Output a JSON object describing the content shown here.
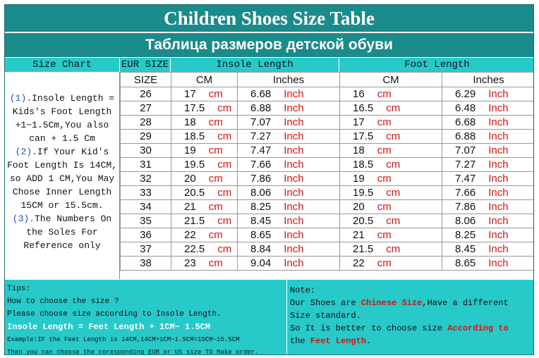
{
  "title": "Children Shoes Size Table",
  "subtitle": "Таблица размеров детской обуви",
  "headers": {
    "size_chart": "Size Chart",
    "eur_size": "EUR SIZE",
    "insole_length": "Insole Length",
    "foot_length": "Foot Length",
    "size": "SIZE",
    "cm": "CM",
    "inches": "Inches"
  },
  "units": {
    "cm": "cm",
    "inch": "Inch"
  },
  "side_note": {
    "p1_num": "(1).",
    "p1_text": "Insole Length = Kids's Foot Length +1~1.5Cm,You also can + 1.5 Cm",
    "p2_num": "(2).",
    "p2_text": "If Your Kid's Foot Length Is 14CM,  so ADD 1 CM,You May Chose Inner Length 15CM or 15.5cm.",
    "p3_num": "(3).",
    "p3_text": "The Numbers On the Soles For Reference only"
  },
  "rows": [
    {
      "size": "26",
      "insole_cm": "17",
      "insole_in": "6.68",
      "foot_cm": "16",
      "foot_in": "6.29"
    },
    {
      "size": "27",
      "insole_cm": "17.5",
      "insole_in": "6.88",
      "foot_cm": "16.5",
      "foot_in": "6.48"
    },
    {
      "size": "28",
      "insole_cm": "18",
      "insole_in": "7.07",
      "foot_cm": "17",
      "foot_in": "6.68"
    },
    {
      "size": "29",
      "insole_cm": "18.5",
      "insole_in": "7.27",
      "foot_cm": "17.5",
      "foot_in": "6.88"
    },
    {
      "size": "30",
      "insole_cm": "19",
      "insole_in": "7.47",
      "foot_cm": "18",
      "foot_in": "7.07"
    },
    {
      "size": "31",
      "insole_cm": "19.5",
      "insole_in": "7.66",
      "foot_cm": "18.5",
      "foot_in": "7.27"
    },
    {
      "size": "32",
      "insole_cm": "20",
      "insole_in": "7.86",
      "foot_cm": "19",
      "foot_in": "7.47"
    },
    {
      "size": "33",
      "insole_cm": "20.5",
      "insole_in": "8.06",
      "foot_cm": "19.5",
      "foot_in": "7.66"
    },
    {
      "size": "34",
      "insole_cm": "21",
      "insole_in": "8.25",
      "foot_cm": "20",
      "foot_in": "7.86"
    },
    {
      "size": "35",
      "insole_cm": "21.5",
      "insole_in": "8.45",
      "foot_cm": "20.5",
      "foot_in": "8.06"
    },
    {
      "size": "36",
      "insole_cm": "22",
      "insole_in": "8.65",
      "foot_cm": "21",
      "foot_in": "8.25"
    },
    {
      "size": "37",
      "insole_cm": "22.5",
      "insole_in": "8.84",
      "foot_cm": "21.5",
      "foot_in": "8.45"
    },
    {
      "size": "38",
      "insole_cm": "23",
      "insole_in": "9.04",
      "foot_cm": "22",
      "foot_in": "8.65"
    }
  ],
  "tips": {
    "label": "Tips:",
    "line1": "How to choose the size ?",
    "line2": "Please choose size according to Insole Length.",
    "formula": "Insole Length = Feet Length + 1CM~ 1.5CM",
    "example": "Example:IF the Feet Length is 14CM,14CM+1CM~1.5CM=15CM~15.5CM",
    "line3": "Then you can choose the coresponding EUR or US size TO Make order."
  },
  "note": {
    "label": "Note:",
    "l1_a": "Our Shoes are ",
    "l1_red": "Chinese Size",
    "l1_b": ",Have a different",
    "l2": "Size standard.",
    "l3_a": "So It is better to choose size ",
    "l3_red": "According to",
    "l4_a": "the ",
    "l4_red": "Feet Length",
    "l4_b": "."
  },
  "colors": {
    "header_dark": "#1b8a8a",
    "header_light": "#27c9c9",
    "unit_red": "#d21414",
    "note_blue": "#1a4fbf"
  }
}
